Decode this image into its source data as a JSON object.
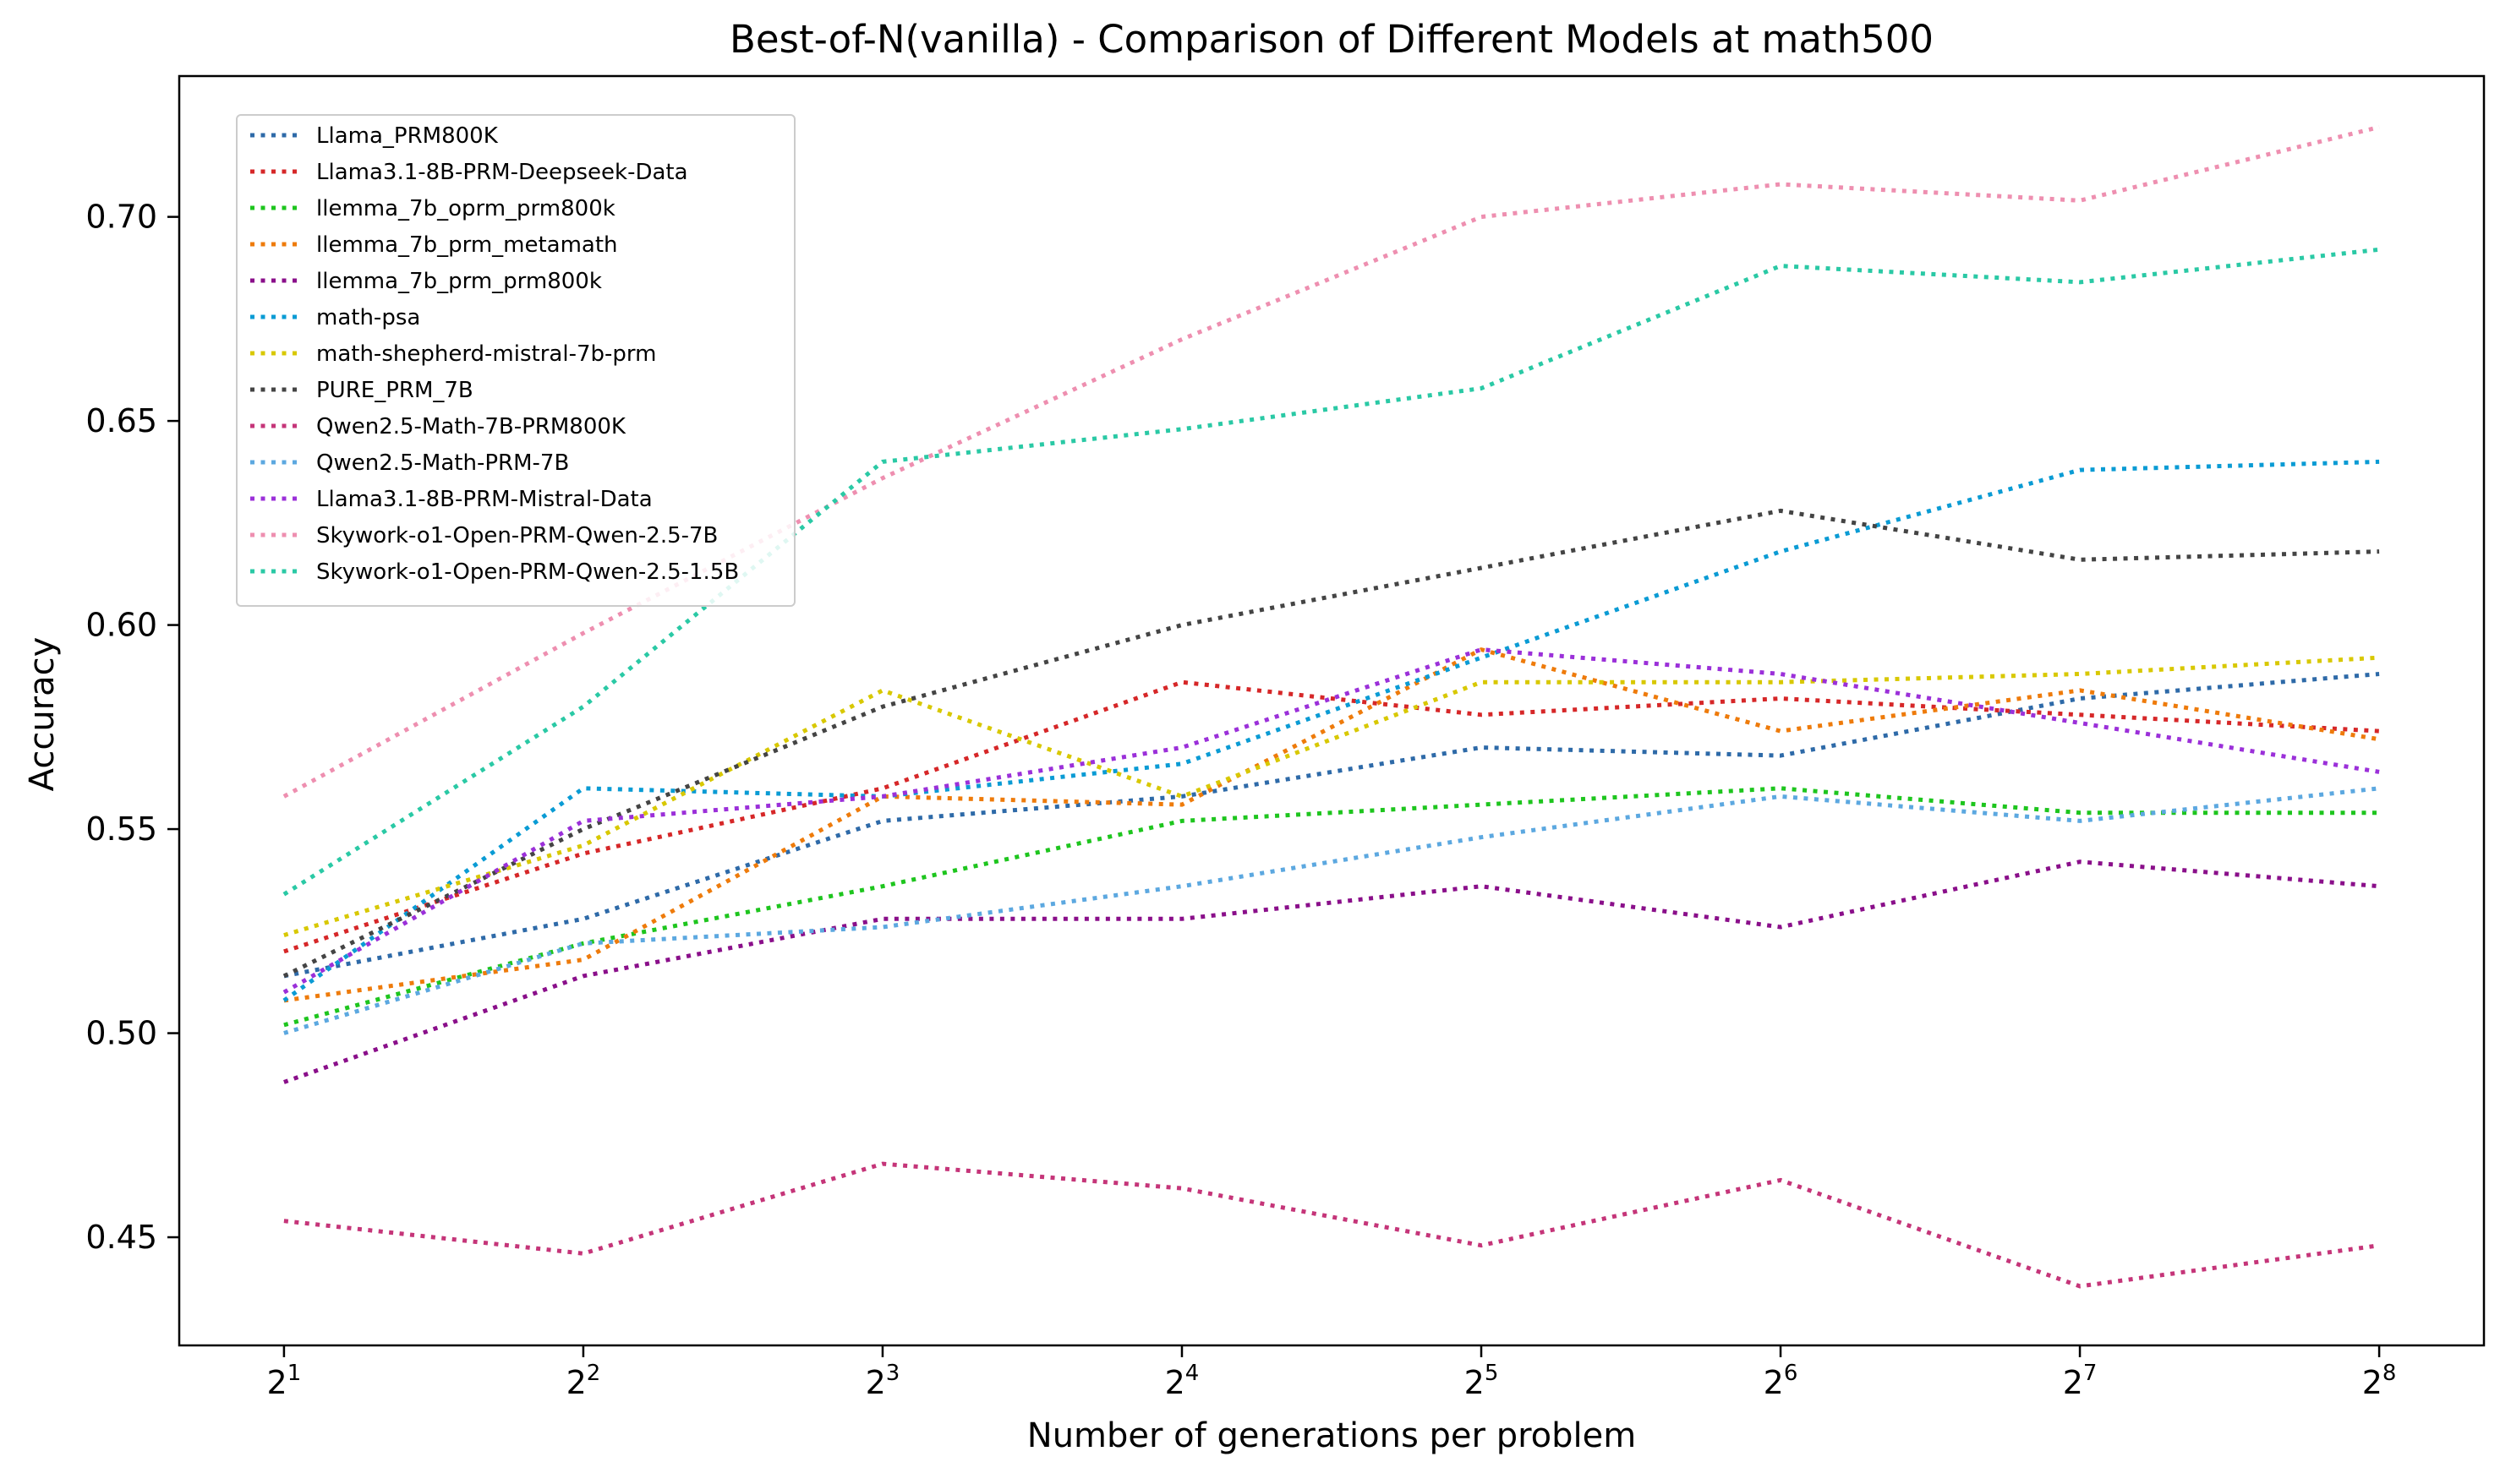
{
  "chart_data": {
    "type": "line",
    "title": "Best-of-N(vanilla) - Comparison of Different Models at math500",
    "xlabel": "Number of generations per problem",
    "ylabel": "Accuracy",
    "x": [
      1,
      2,
      3,
      4,
      5,
      6,
      7,
      8
    ],
    "x_tick_labels": [
      {
        "base": "2",
        "exp": "1"
      },
      {
        "base": "2",
        "exp": "2"
      },
      {
        "base": "2",
        "exp": "3"
      },
      {
        "base": "2",
        "exp": "4"
      },
      {
        "base": "2",
        "exp": "5"
      },
      {
        "base": "2",
        "exp": "6"
      },
      {
        "base": "2",
        "exp": "7"
      },
      {
        "base": "2",
        "exp": "8"
      }
    ],
    "x_scale": "log2",
    "xlim": [
      0.65,
      8.35
    ],
    "ylim": [
      0.4235,
      0.7345
    ],
    "y_ticks": [
      0.45,
      0.5,
      0.55,
      0.6,
      0.65,
      0.7
    ],
    "y_tick_labels": [
      "0.45",
      "0.50",
      "0.55",
      "0.60",
      "0.65",
      "0.70"
    ],
    "grid": false,
    "line_style": "dotted",
    "legend_position": "upper-left",
    "series": [
      {
        "name": "Llama_PRM800K",
        "color": "#2e6aa8",
        "values": [
          0.514,
          0.528,
          0.552,
          0.558,
          0.57,
          0.568,
          0.582,
          0.588
        ]
      },
      {
        "name": "Llama3.1-8B-PRM-Deepseek-Data",
        "color": "#d62728",
        "values": [
          0.52,
          0.544,
          0.56,
          0.586,
          0.578,
          0.582,
          0.578,
          0.574
        ]
      },
      {
        "name": "llemma_7b_oprm_prm800k",
        "color": "#1ec51e",
        "values": [
          0.502,
          0.522,
          0.536,
          0.552,
          0.556,
          0.56,
          0.554,
          0.554
        ]
      },
      {
        "name": "llemma_7b_prm_metamath",
        "color": "#ee7b0b",
        "values": [
          0.508,
          0.518,
          0.558,
          0.556,
          0.594,
          0.574,
          0.584,
          0.572
        ]
      },
      {
        "name": "llemma_7b_prm_prm800k",
        "color": "#8a0f8a",
        "values": [
          0.488,
          0.514,
          0.528,
          0.528,
          0.536,
          0.526,
          0.542,
          0.536
        ]
      },
      {
        "name": "math-psa",
        "color": "#0a9bd4",
        "values": [
          0.508,
          0.56,
          0.558,
          0.566,
          0.592,
          0.618,
          0.638,
          0.64
        ]
      },
      {
        "name": "math-shepherd-mistral-7b-prm",
        "color": "#d8c800",
        "values": [
          0.524,
          0.546,
          0.584,
          0.558,
          0.586,
          0.586,
          0.588,
          0.592
        ]
      },
      {
        "name": "PURE_PRM_7B",
        "color": "#444444",
        "values": [
          0.514,
          0.55,
          0.58,
          0.6,
          0.614,
          0.628,
          0.616,
          0.618
        ]
      },
      {
        "name": "Qwen2.5-Math-7B-PRM800K",
        "color": "#c53579",
        "values": [
          0.454,
          0.446,
          0.468,
          0.462,
          0.448,
          0.464,
          0.438,
          0.448
        ]
      },
      {
        "name": "Qwen2.5-Math-PRM-7B",
        "color": "#5ca8e0",
        "values": [
          0.5,
          0.522,
          0.526,
          0.536,
          0.548,
          0.558,
          0.552,
          0.56
        ]
      },
      {
        "name": "Llama3.1-8B-PRM-Mistral-Data",
        "color": "#9b30d9",
        "values": [
          0.51,
          0.552,
          0.558,
          0.57,
          0.594,
          0.588,
          0.576,
          0.564
        ]
      },
      {
        "name": "Skywork-o1-Open-PRM-Qwen-2.5-7B",
        "color": "#ee8fb0",
        "values": [
          0.558,
          0.598,
          0.636,
          0.67,
          0.7,
          0.708,
          0.704,
          0.722
        ]
      },
      {
        "name": "Skywork-o1-Open-PRM-Qwen-2.5-1.5B",
        "color": "#2ac9a5",
        "values": [
          0.534,
          0.58,
          0.64,
          0.648,
          0.658,
          0.688,
          0.684,
          0.692
        ]
      }
    ]
  }
}
